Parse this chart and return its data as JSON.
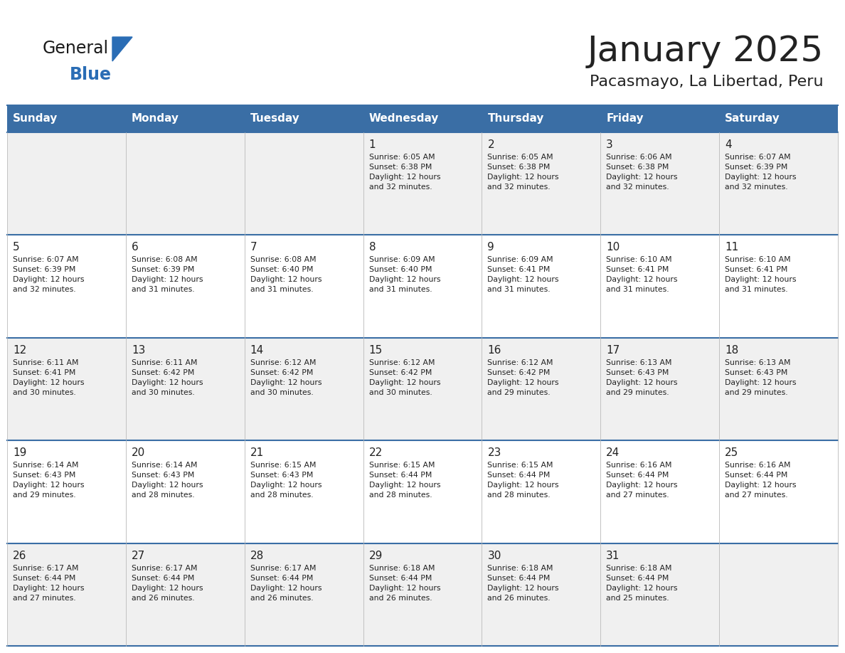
{
  "title": "January 2025",
  "subtitle": "Pacasmayo, La Libertad, Peru",
  "days_of_week": [
    "Sunday",
    "Monday",
    "Tuesday",
    "Wednesday",
    "Thursday",
    "Friday",
    "Saturday"
  ],
  "header_bg": "#3a6ea5",
  "header_text": "#ffffff",
  "cell_bg_odd": "#f0f0f0",
  "cell_bg_even": "#ffffff",
  "border_color": "#3a6ea5",
  "cell_border": "#c0c0c0",
  "text_color": "#222222",
  "day_num_color": "#222222",
  "logo_general_color": "#1a1a1a",
  "logo_blue_color": "#2a6db5",
  "calendar": [
    [
      {
        "day": null,
        "info": null
      },
      {
        "day": null,
        "info": null
      },
      {
        "day": null,
        "info": null
      },
      {
        "day": 1,
        "info": "Sunrise: 6:05 AM\nSunset: 6:38 PM\nDaylight: 12 hours\nand 32 minutes."
      },
      {
        "day": 2,
        "info": "Sunrise: 6:05 AM\nSunset: 6:38 PM\nDaylight: 12 hours\nand 32 minutes."
      },
      {
        "day": 3,
        "info": "Sunrise: 6:06 AM\nSunset: 6:38 PM\nDaylight: 12 hours\nand 32 minutes."
      },
      {
        "day": 4,
        "info": "Sunrise: 6:07 AM\nSunset: 6:39 PM\nDaylight: 12 hours\nand 32 minutes."
      }
    ],
    [
      {
        "day": 5,
        "info": "Sunrise: 6:07 AM\nSunset: 6:39 PM\nDaylight: 12 hours\nand 32 minutes."
      },
      {
        "day": 6,
        "info": "Sunrise: 6:08 AM\nSunset: 6:39 PM\nDaylight: 12 hours\nand 31 minutes."
      },
      {
        "day": 7,
        "info": "Sunrise: 6:08 AM\nSunset: 6:40 PM\nDaylight: 12 hours\nand 31 minutes."
      },
      {
        "day": 8,
        "info": "Sunrise: 6:09 AM\nSunset: 6:40 PM\nDaylight: 12 hours\nand 31 minutes."
      },
      {
        "day": 9,
        "info": "Sunrise: 6:09 AM\nSunset: 6:41 PM\nDaylight: 12 hours\nand 31 minutes."
      },
      {
        "day": 10,
        "info": "Sunrise: 6:10 AM\nSunset: 6:41 PM\nDaylight: 12 hours\nand 31 minutes."
      },
      {
        "day": 11,
        "info": "Sunrise: 6:10 AM\nSunset: 6:41 PM\nDaylight: 12 hours\nand 31 minutes."
      }
    ],
    [
      {
        "day": 12,
        "info": "Sunrise: 6:11 AM\nSunset: 6:41 PM\nDaylight: 12 hours\nand 30 minutes."
      },
      {
        "day": 13,
        "info": "Sunrise: 6:11 AM\nSunset: 6:42 PM\nDaylight: 12 hours\nand 30 minutes."
      },
      {
        "day": 14,
        "info": "Sunrise: 6:12 AM\nSunset: 6:42 PM\nDaylight: 12 hours\nand 30 minutes."
      },
      {
        "day": 15,
        "info": "Sunrise: 6:12 AM\nSunset: 6:42 PM\nDaylight: 12 hours\nand 30 minutes."
      },
      {
        "day": 16,
        "info": "Sunrise: 6:12 AM\nSunset: 6:42 PM\nDaylight: 12 hours\nand 29 minutes."
      },
      {
        "day": 17,
        "info": "Sunrise: 6:13 AM\nSunset: 6:43 PM\nDaylight: 12 hours\nand 29 minutes."
      },
      {
        "day": 18,
        "info": "Sunrise: 6:13 AM\nSunset: 6:43 PM\nDaylight: 12 hours\nand 29 minutes."
      }
    ],
    [
      {
        "day": 19,
        "info": "Sunrise: 6:14 AM\nSunset: 6:43 PM\nDaylight: 12 hours\nand 29 minutes."
      },
      {
        "day": 20,
        "info": "Sunrise: 6:14 AM\nSunset: 6:43 PM\nDaylight: 12 hours\nand 28 minutes."
      },
      {
        "day": 21,
        "info": "Sunrise: 6:15 AM\nSunset: 6:43 PM\nDaylight: 12 hours\nand 28 minutes."
      },
      {
        "day": 22,
        "info": "Sunrise: 6:15 AM\nSunset: 6:44 PM\nDaylight: 12 hours\nand 28 minutes."
      },
      {
        "day": 23,
        "info": "Sunrise: 6:15 AM\nSunset: 6:44 PM\nDaylight: 12 hours\nand 28 minutes."
      },
      {
        "day": 24,
        "info": "Sunrise: 6:16 AM\nSunset: 6:44 PM\nDaylight: 12 hours\nand 27 minutes."
      },
      {
        "day": 25,
        "info": "Sunrise: 6:16 AM\nSunset: 6:44 PM\nDaylight: 12 hours\nand 27 minutes."
      }
    ],
    [
      {
        "day": 26,
        "info": "Sunrise: 6:17 AM\nSunset: 6:44 PM\nDaylight: 12 hours\nand 27 minutes."
      },
      {
        "day": 27,
        "info": "Sunrise: 6:17 AM\nSunset: 6:44 PM\nDaylight: 12 hours\nand 26 minutes."
      },
      {
        "day": 28,
        "info": "Sunrise: 6:17 AM\nSunset: 6:44 PM\nDaylight: 12 hours\nand 26 minutes."
      },
      {
        "day": 29,
        "info": "Sunrise: 6:18 AM\nSunset: 6:44 PM\nDaylight: 12 hours\nand 26 minutes."
      },
      {
        "day": 30,
        "info": "Sunrise: 6:18 AM\nSunset: 6:44 PM\nDaylight: 12 hours\nand 26 minutes."
      },
      {
        "day": 31,
        "info": "Sunrise: 6:18 AM\nSunset: 6:44 PM\nDaylight: 12 hours\nand 25 minutes."
      },
      {
        "day": null,
        "info": null
      }
    ]
  ]
}
